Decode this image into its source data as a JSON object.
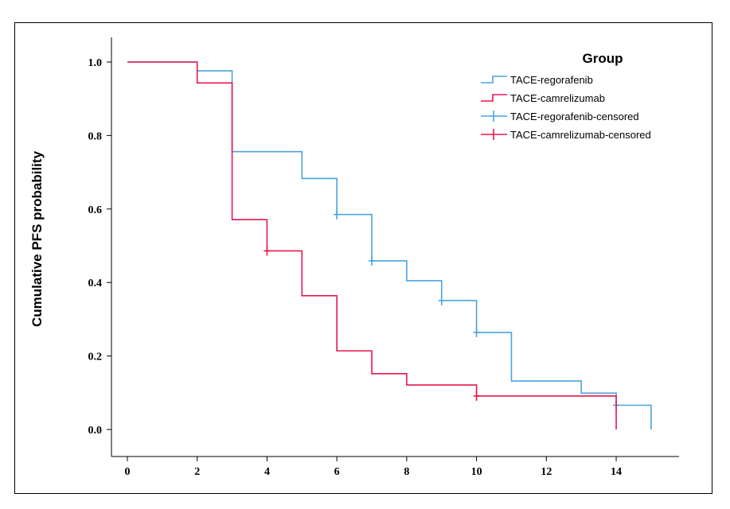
{
  "chart_data": {
    "type": "line",
    "title": "",
    "xlabel": "",
    "ylabel": "Cumulative PFS probability",
    "xlim": [
      0,
      15.5
    ],
    "ylim": [
      0,
      1.0
    ],
    "x_ticks": [
      0,
      2,
      4,
      6,
      8,
      10,
      12,
      14
    ],
    "y_ticks": [
      "0.0",
      "0.2",
      "0.4",
      "0.6",
      "0.8",
      "1.0"
    ],
    "grid": false,
    "legend": {
      "title": "Group",
      "placement": "top-right",
      "entries": [
        {
          "label": "TACE-regorafenib",
          "color": "#4aa3df",
          "marker": "step"
        },
        {
          "label": "TACE-camrelizumab",
          "color": "#e8174f",
          "marker": "step"
        },
        {
          "label": "TACE-regorafenib-censored",
          "color": "#4aa3df",
          "marker": "cross"
        },
        {
          "label": "TACE-camrelizumab-censored",
          "color": "#e8174f",
          "marker": "cross"
        }
      ]
    },
    "series": [
      {
        "name": "TACE-regorafenib",
        "color": "#4aa3df",
        "steps": [
          [
            0,
            1.0
          ],
          [
            2,
            0.976
          ],
          [
            3,
            0.756
          ],
          [
            5,
            0.683
          ],
          [
            6,
            0.585
          ],
          [
            7,
            0.459
          ],
          [
            8,
            0.405
          ],
          [
            9,
            0.351
          ],
          [
            10,
            0.264
          ],
          [
            11,
            0.132
          ],
          [
            13,
            0.099
          ],
          [
            14,
            0.066
          ],
          [
            15,
            0.0
          ]
        ],
        "censored": [
          [
            6,
            0.585
          ],
          [
            7,
            0.459
          ],
          [
            9,
            0.351
          ],
          [
            10,
            0.264
          ],
          [
            14,
            0.066
          ]
        ]
      },
      {
        "name": "TACE-camrelizumab",
        "color": "#e8174f",
        "steps": [
          [
            0,
            1.0
          ],
          [
            2,
            0.943
          ],
          [
            3,
            0.571
          ],
          [
            4,
            0.486
          ],
          [
            5,
            0.364
          ],
          [
            6,
            0.214
          ],
          [
            7,
            0.152
          ],
          [
            8,
            0.121
          ],
          [
            10,
            0.091
          ],
          [
            14,
            0.0
          ]
        ],
        "censored": [
          [
            4,
            0.486
          ],
          [
            10,
            0.091
          ]
        ]
      }
    ]
  }
}
